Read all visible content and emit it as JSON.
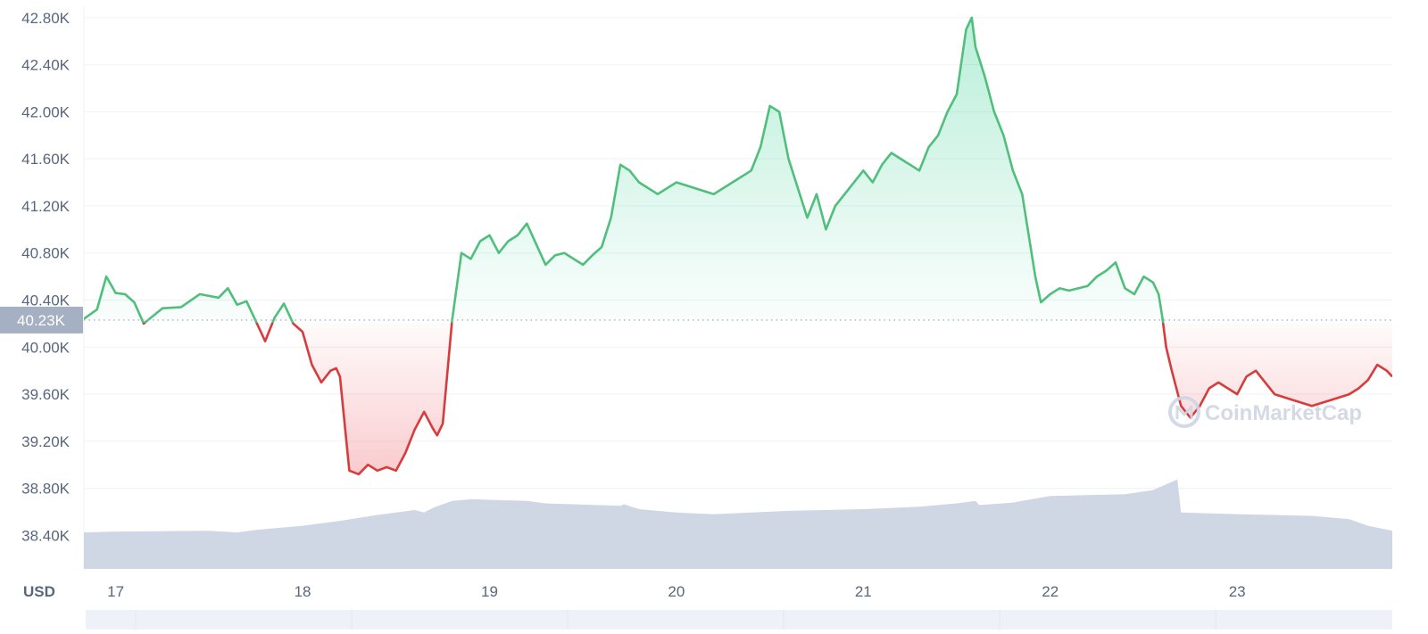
{
  "colors": {
    "up": "#16c784",
    "down": "#ea3943",
    "up_line": "#4fbf7b",
    "down_line": "#d73c3c",
    "volume": "#cfd6e4",
    "axis_text": "#58667e",
    "grid": "#eff2f5",
    "current_price_bg": "#a6b0c3"
  },
  "chart_data": {
    "type": "area",
    "unit_label": "USD",
    "baseline_label": "40.23K",
    "baseline": 40230,
    "x_range": [
      16.83,
      23.83
    ],
    "ylim": [
      38100,
      42950
    ],
    "y_ticks": [
      38400,
      38800,
      39200,
      39600,
      40000,
      40400,
      40800,
      41200,
      41600,
      42000,
      42400,
      42800
    ],
    "y_tick_labels": [
      "38.40K",
      "38.80K",
      "39.20K",
      "39.60K",
      "40.00K",
      "40.40K",
      "40.80K",
      "41.20K",
      "41.60K",
      "42.00K",
      "42.40K",
      "42.80K"
    ],
    "x_ticks": [
      17,
      18,
      19,
      20,
      21,
      22,
      23
    ],
    "x_tick_labels": [
      "17",
      "18",
      "19",
      "20",
      "21",
      "22",
      "23"
    ],
    "grid": true,
    "price_series": {
      "x": [
        16.83,
        16.9,
        16.95,
        17.0,
        17.05,
        17.1,
        17.15,
        17.25,
        17.35,
        17.45,
        17.55,
        17.6,
        17.65,
        17.7,
        17.75,
        17.8,
        17.85,
        17.9,
        17.95,
        18.0,
        18.05,
        18.1,
        18.15,
        18.18,
        18.2,
        18.25,
        18.3,
        18.35,
        18.4,
        18.45,
        18.5,
        18.55,
        18.6,
        18.65,
        18.7,
        18.72,
        18.75,
        18.8,
        18.85,
        18.9,
        18.95,
        19.0,
        19.05,
        19.1,
        19.15,
        19.2,
        19.3,
        19.35,
        19.4,
        19.5,
        19.55,
        19.6,
        19.65,
        19.7,
        19.75,
        19.8,
        19.9,
        20.0,
        20.1,
        20.2,
        20.3,
        20.4,
        20.45,
        20.5,
        20.55,
        20.6,
        20.65,
        20.7,
        20.75,
        20.8,
        20.85,
        20.9,
        21.0,
        21.05,
        21.1,
        21.15,
        21.2,
        21.3,
        21.35,
        21.4,
        21.45,
        21.5,
        21.55,
        21.58,
        21.6,
        21.65,
        21.7,
        21.75,
        21.8,
        21.85,
        21.9,
        21.92,
        21.95,
        22.0,
        22.05,
        22.1,
        22.2,
        22.25,
        22.3,
        22.35,
        22.4,
        22.45,
        22.5,
        22.55,
        22.58,
        22.6,
        22.62,
        22.65,
        22.7,
        22.75,
        22.8,
        22.85,
        22.9,
        23.0,
        23.05,
        23.1,
        23.15,
        23.2,
        23.3,
        23.4,
        23.5,
        23.6,
        23.65,
        23.7,
        23.75,
        23.8,
        23.83
      ],
      "y": [
        40240,
        40320,
        40600,
        40460,
        40450,
        40380,
        40200,
        40330,
        40340,
        40450,
        40420,
        40500,
        40360,
        40390,
        40220,
        40050,
        40250,
        40370,
        40200,
        40130,
        39850,
        39700,
        39800,
        39820,
        39750,
        38950,
        38920,
        39000,
        38950,
        38980,
        38950,
        39100,
        39300,
        39450,
        39300,
        39250,
        39350,
        40230,
        40800,
        40750,
        40900,
        40950,
        40800,
        40900,
        40950,
        41050,
        40700,
        40780,
        40800,
        40700,
        40780,
        40850,
        41100,
        41550,
        41500,
        41400,
        41300,
        41400,
        41350,
        41300,
        41400,
        41500,
        41700,
        42050,
        42000,
        41600,
        41350,
        41100,
        41300,
        41000,
        41200,
        41300,
        41500,
        41400,
        41550,
        41650,
        41600,
        41500,
        41700,
        41800,
        42000,
        42150,
        42700,
        42800,
        42550,
        42300,
        42000,
        41800,
        41500,
        41300,
        40800,
        40600,
        40380,
        40450,
        40500,
        40480,
        40520,
        40600,
        40650,
        40720,
        40500,
        40450,
        40600,
        40550,
        40450,
        40250,
        40000,
        39800,
        39500,
        39400,
        39500,
        39650,
        39700,
        39600,
        39750,
        39800,
        39700,
        39600,
        39550,
        39500,
        39550,
        39600,
        39650,
        39720,
        39850,
        39800,
        39750
      ]
    },
    "volume_series": {
      "x": [
        16.83,
        17.0,
        17.5,
        17.65,
        17.75,
        18.0,
        18.2,
        18.4,
        18.6,
        18.65,
        18.7,
        18.75,
        18.8,
        18.9,
        19.2,
        19.3,
        19.7,
        19.72,
        19.8,
        20.0,
        20.2,
        20.4,
        20.6,
        21.0,
        21.3,
        21.5,
        21.6,
        21.62,
        21.8,
        22.0,
        22.4,
        22.55,
        22.6,
        22.65,
        22.68,
        22.7,
        23.0,
        23.4,
        23.6,
        23.7,
        23.83
      ],
      "y": [
        0.44,
        0.45,
        0.46,
        0.44,
        0.47,
        0.52,
        0.58,
        0.65,
        0.71,
        0.68,
        0.74,
        0.78,
        0.82,
        0.84,
        0.82,
        0.79,
        0.76,
        0.78,
        0.72,
        0.68,
        0.66,
        0.68,
        0.7,
        0.72,
        0.75,
        0.79,
        0.82,
        0.77,
        0.8,
        0.88,
        0.9,
        0.95,
        1.0,
        1.05,
        1.08,
        0.68,
        0.66,
        0.64,
        0.6,
        0.52,
        0.46
      ]
    },
    "watermark": "CoinMarketCap"
  }
}
